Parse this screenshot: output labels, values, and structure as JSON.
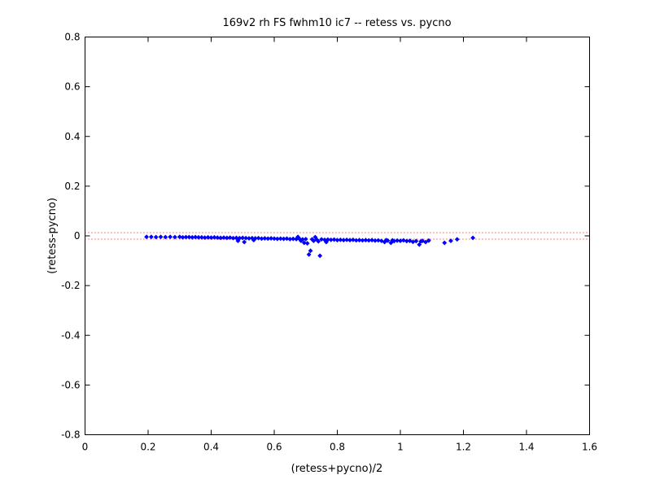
{
  "chart_data": {
    "type": "scatter",
    "title": "169v2 rh FS fwhm10 ic7 -- retess vs. pycno",
    "xlabel": "(retess+pycno)/2",
    "ylabel": "(retess-pycno)",
    "xlim": [
      0,
      1.6
    ],
    "ylim": [
      -0.8,
      0.8
    ],
    "xticks": [
      0,
      0.2,
      0.4,
      0.6,
      0.8,
      1,
      1.2,
      1.4,
      1.6
    ],
    "xtick_labels": [
      "0",
      "0.2",
      "0.4",
      "0.6",
      "0.8",
      "1",
      "1.2",
      "1.4",
      "1.6"
    ],
    "yticks": [
      -0.8,
      -0.6,
      -0.4,
      -0.2,
      0,
      0.2,
      0.4,
      0.6,
      0.8
    ],
    "ytick_labels": [
      "-0.8",
      "-0.6",
      "-0.4",
      "-0.2",
      "0",
      "0.2",
      "0.4",
      "0.6",
      "0.8"
    ],
    "grid": false,
    "legend": "none",
    "colors": {
      "points": "#0000ff",
      "reference_lines": "#ff0000",
      "axes": "#000000"
    },
    "reference_lines": [
      {
        "y": 0.013,
        "style": "dotted"
      },
      {
        "y": -0.013,
        "style": "dotted"
      }
    ],
    "series": [
      {
        "marker": "diamond",
        "points": [
          [
            0.195,
            -0.004
          ],
          [
            0.21,
            -0.004
          ],
          [
            0.225,
            -0.005
          ],
          [
            0.24,
            -0.004
          ],
          [
            0.255,
            -0.005
          ],
          [
            0.27,
            -0.004
          ],
          [
            0.285,
            -0.005
          ],
          [
            0.3,
            -0.004
          ],
          [
            0.31,
            -0.006
          ],
          [
            0.32,
            -0.005
          ],
          [
            0.33,
            -0.005
          ],
          [
            0.34,
            -0.006
          ],
          [
            0.35,
            -0.005
          ],
          [
            0.36,
            -0.006
          ],
          [
            0.37,
            -0.006
          ],
          [
            0.38,
            -0.007
          ],
          [
            0.39,
            -0.006
          ],
          [
            0.4,
            -0.007
          ],
          [
            0.41,
            -0.006
          ],
          [
            0.42,
            -0.007
          ],
          [
            0.43,
            -0.008
          ],
          [
            0.44,
            -0.007
          ],
          [
            0.45,
            -0.008
          ],
          [
            0.46,
            -0.007
          ],
          [
            0.47,
            -0.009
          ],
          [
            0.48,
            -0.008
          ],
          [
            0.485,
            -0.02
          ],
          [
            0.49,
            -0.009
          ],
          [
            0.5,
            -0.008
          ],
          [
            0.505,
            -0.025
          ],
          [
            0.51,
            -0.009
          ],
          [
            0.52,
            -0.01
          ],
          [
            0.53,
            -0.009
          ],
          [
            0.535,
            -0.017
          ],
          [
            0.54,
            -0.01
          ],
          [
            0.55,
            -0.009
          ],
          [
            0.56,
            -0.011
          ],
          [
            0.57,
            -0.01
          ],
          [
            0.58,
            -0.011
          ],
          [
            0.59,
            -0.01
          ],
          [
            0.6,
            -0.011
          ],
          [
            0.61,
            -0.012
          ],
          [
            0.62,
            -0.011
          ],
          [
            0.63,
            -0.012
          ],
          [
            0.64,
            -0.011
          ],
          [
            0.65,
            -0.013
          ],
          [
            0.66,
            -0.012
          ],
          [
            0.67,
            -0.013
          ],
          [
            0.675,
            -0.004
          ],
          [
            0.68,
            -0.012
          ],
          [
            0.685,
            -0.02
          ],
          [
            0.69,
            -0.014
          ],
          [
            0.695,
            -0.028
          ],
          [
            0.7,
            -0.013
          ],
          [
            0.705,
            -0.03
          ],
          [
            0.71,
            -0.075
          ],
          [
            0.715,
            -0.06
          ],
          [
            0.72,
            -0.014
          ],
          [
            0.725,
            -0.02
          ],
          [
            0.73,
            -0.005
          ],
          [
            0.735,
            -0.015
          ],
          [
            0.74,
            -0.022
          ],
          [
            0.745,
            -0.08
          ],
          [
            0.75,
            -0.014
          ],
          [
            0.76,
            -0.016
          ],
          [
            0.765,
            -0.025
          ],
          [
            0.77,
            -0.015
          ],
          [
            0.78,
            -0.016
          ],
          [
            0.79,
            -0.015
          ],
          [
            0.8,
            -0.017
          ],
          [
            0.81,
            -0.016
          ],
          [
            0.82,
            -0.017
          ],
          [
            0.83,
            -0.016
          ],
          [
            0.84,
            -0.017
          ],
          [
            0.85,
            -0.016
          ],
          [
            0.86,
            -0.018
          ],
          [
            0.87,
            -0.017
          ],
          [
            0.88,
            -0.018
          ],
          [
            0.89,
            -0.017
          ],
          [
            0.9,
            -0.018
          ],
          [
            0.91,
            -0.017
          ],
          [
            0.92,
            -0.019
          ],
          [
            0.93,
            -0.018
          ],
          [
            0.94,
            -0.02
          ],
          [
            0.95,
            -0.025
          ],
          [
            0.955,
            -0.017
          ],
          [
            0.96,
            -0.019
          ],
          [
            0.97,
            -0.028
          ],
          [
            0.975,
            -0.018
          ],
          [
            0.98,
            -0.021
          ],
          [
            0.99,
            -0.019
          ],
          [
            1.0,
            -0.02
          ],
          [
            1.01,
            -0.018
          ],
          [
            1.02,
            -0.021
          ],
          [
            1.03,
            -0.02
          ],
          [
            1.04,
            -0.024
          ],
          [
            1.05,
            -0.021
          ],
          [
            1.06,
            -0.035
          ],
          [
            1.065,
            -0.022
          ],
          [
            1.07,
            -0.02
          ],
          [
            1.08,
            -0.025
          ],
          [
            1.09,
            -0.019
          ],
          [
            1.14,
            -0.028
          ],
          [
            1.16,
            -0.02
          ],
          [
            1.18,
            -0.014
          ],
          [
            1.23,
            -0.008
          ]
        ]
      }
    ]
  }
}
